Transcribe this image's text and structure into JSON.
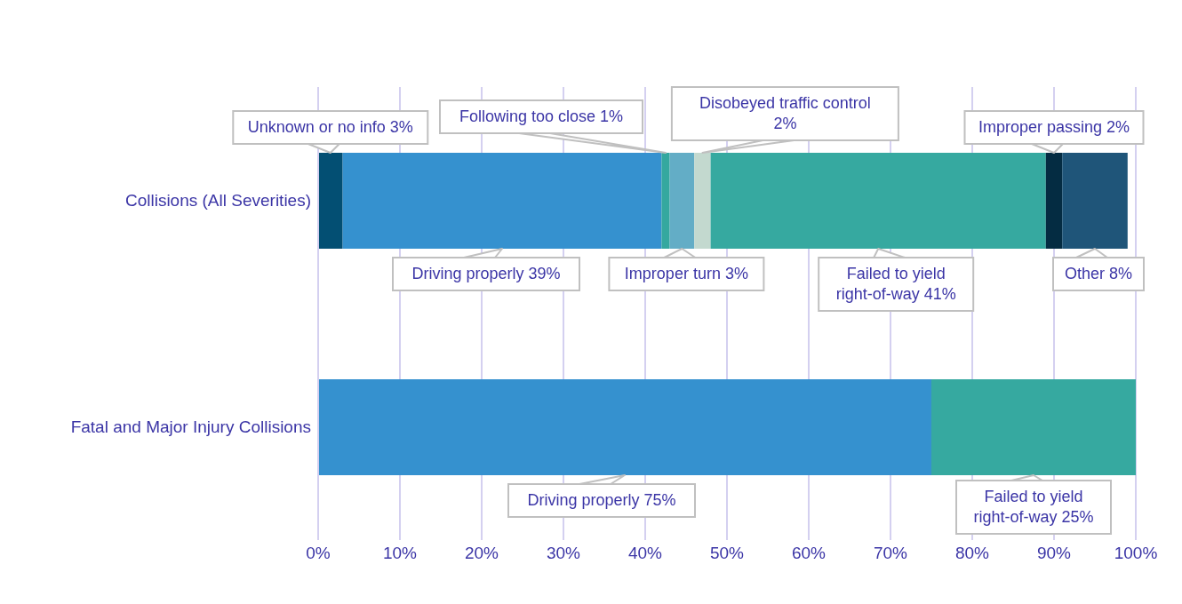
{
  "chart_data": {
    "type": "bar",
    "orientation": "horizontal",
    "stacked": true,
    "categories": [
      "Collisions (All Severities)",
      "Fatal and Major Injury Collisions"
    ],
    "series": [
      {
        "color": "#034f73",
        "values": [
          3,
          null
        ],
        "value_labels": [
          "Unknown or no info 3%",
          null
        ]
      },
      {
        "color": "#3591cf",
        "values": [
          39,
          75
        ],
        "value_labels": [
          "Driving properly 39%",
          "Driving properly 75%"
        ]
      },
      {
        "color": "#35a89f",
        "values": [
          1,
          null
        ],
        "value_labels": [
          "Following too close 1%",
          null
        ]
      },
      {
        "color": "#63adc6",
        "values": [
          3,
          null
        ],
        "value_labels": [
          "Improper turn 3%",
          null
        ]
      },
      {
        "color": "#c3d9cf",
        "values": [
          2,
          null
        ],
        "value_labels": [
          "Disobeyed traffic control 2%",
          null
        ]
      },
      {
        "color": "#36a9a0",
        "values": [
          41,
          25
        ],
        "value_labels": [
          "Failed to yield right-of-way 41%",
          "Failed to yield right-of-way 25%"
        ]
      },
      {
        "color": "#042c42",
        "values": [
          2,
          null
        ],
        "value_labels": [
          "Improper passing 2%",
          null
        ]
      },
      {
        "color": "#1f5579",
        "values": [
          8,
          null
        ],
        "value_labels": [
          "Other 8%",
          null
        ]
      }
    ],
    "xlim": [
      0,
      100
    ],
    "xticks": [
      {
        "value": 0,
        "label": "0%"
      },
      {
        "value": 10,
        "label": "10%"
      },
      {
        "value": 20,
        "label": "20%"
      },
      {
        "value": 30,
        "label": "30%"
      },
      {
        "value": 40,
        "label": "40%"
      },
      {
        "value": 50,
        "label": "50%"
      },
      {
        "value": 60,
        "label": "60%"
      },
      {
        "value": 70,
        "label": "70%"
      },
      {
        "value": 80,
        "label": "80%"
      },
      {
        "value": 90,
        "label": "90%"
      },
      {
        "value": 100,
        "label": "100%"
      }
    ],
    "grid": "x",
    "legend": false
  }
}
